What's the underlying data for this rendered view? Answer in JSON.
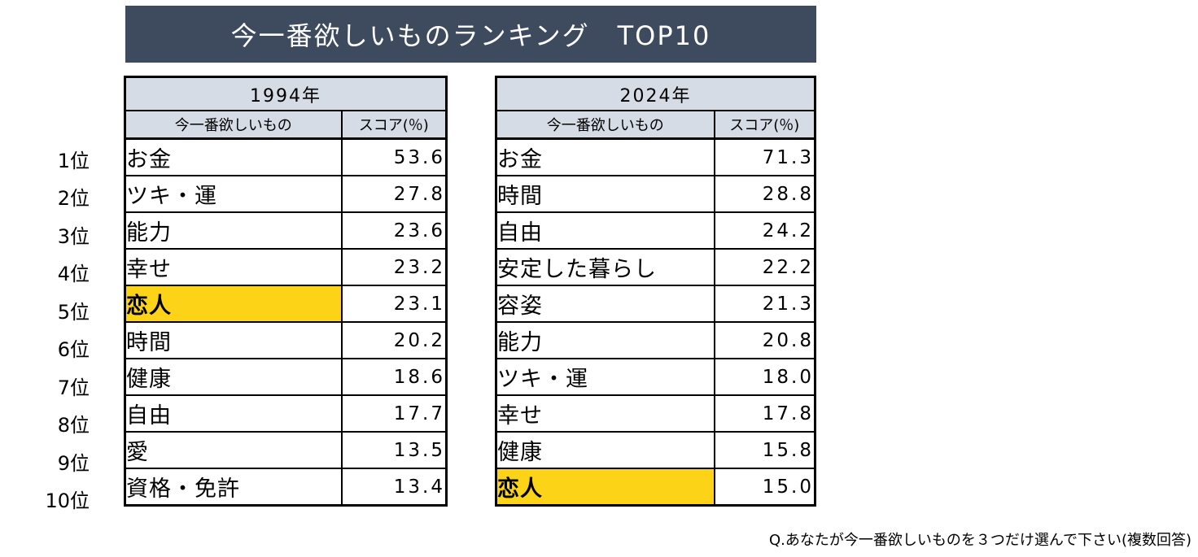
{
  "title": "今一番欲しいものランキング　TOP10",
  "ranks": [
    "1位",
    "2位",
    "3位",
    "4位",
    "5位",
    "6位",
    "7位",
    "8位",
    "9位",
    "10位"
  ],
  "tables": [
    {
      "year": "1994年",
      "header_item": "今一番欲しいもの",
      "header_score": "スコア(％)",
      "rows": [
        {
          "item": "お金",
          "score": "53.6"
        },
        {
          "item": "ツキ・運",
          "score": "27.8"
        },
        {
          "item": "能力",
          "score": "23.6"
        },
        {
          "item": "幸せ",
          "score": "23.2"
        },
        {
          "item": "恋人",
          "score": "23.1",
          "highlight": true
        },
        {
          "item": "時間",
          "score": "20.2"
        },
        {
          "item": "健康",
          "score": "18.6"
        },
        {
          "item": "自由",
          "score": "17.7"
        },
        {
          "item": "愛",
          "score": "13.5"
        },
        {
          "item": "資格・免許",
          "score": "13.4"
        }
      ]
    },
    {
      "year": "2024年",
      "header_item": "今一番欲しいもの",
      "header_score": "スコア(％)",
      "rows": [
        {
          "item": "お金",
          "score": "71.3"
        },
        {
          "item": "時間",
          "score": "28.8"
        },
        {
          "item": "自由",
          "score": "24.2"
        },
        {
          "item": "安定した暮らし",
          "score": "22.2"
        },
        {
          "item": "容姿",
          "score": "21.3"
        },
        {
          "item": "能力",
          "score": "20.8"
        },
        {
          "item": "ツキ・運",
          "score": "18.0"
        },
        {
          "item": "幸せ",
          "score": "17.8"
        },
        {
          "item": "健康",
          "score": "15.8"
        },
        {
          "item": "恋人",
          "score": "15.0",
          "highlight": true
        }
      ]
    }
  ],
  "note": "Q.あなたが今一番欲しいものを３つだけ選んで下さい(複数回答)",
  "colors": {
    "banner": "#3e4a5e",
    "header": "#d5dce6",
    "highlight": "#fcd316"
  }
}
